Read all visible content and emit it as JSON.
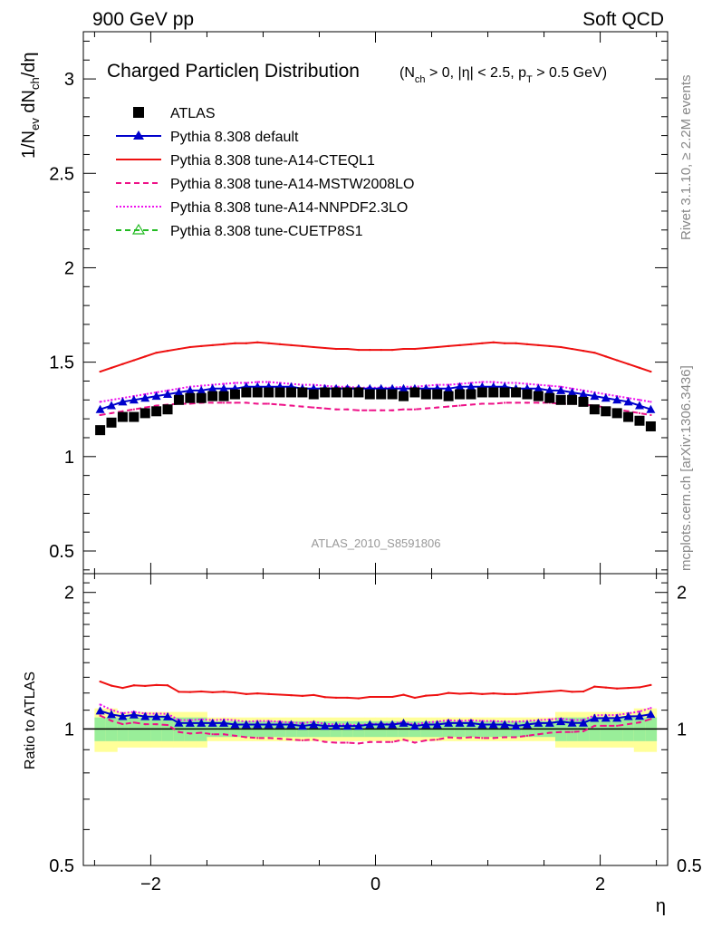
{
  "header": {
    "left": "900 GeV pp",
    "right": "Soft QCD",
    "side_top": "Rivet 3.1.10, ≥ 2.2M events",
    "side_bottom": "mcplots.cern.ch [arXiv:1306.3436]",
    "analysis_id": "ATLAS_2010_S8591806"
  },
  "chart_data": {
    "type": "line",
    "title": "Charged Particleη Distribution",
    "subtitle": "(N_ch > 0, |η| < 2.5, p_T > 0.5 GeV)",
    "xlabel": "η",
    "ylabel": "1/N_ev dN_ch/dη",
    "ratio_ylabel": "Ratio to ATLAS",
    "xlim": [
      -2.6,
      2.6
    ],
    "ylim_main": [
      0.38,
      3.25
    ],
    "ylim_ratio": [
      0.5,
      2.2
    ],
    "x_ticks": [
      "−2",
      "0",
      "2"
    ],
    "y_ticks_main": [
      "0.5",
      "1",
      "1.5",
      "2",
      "2.5",
      "3"
    ],
    "y_ticks_ratio": [
      "0.5",
      "1",
      "2"
    ],
    "x": [
      -2.45,
      -2.35,
      -2.25,
      -2.15,
      -2.05,
      -1.95,
      -1.85,
      -1.75,
      -1.65,
      -1.55,
      -1.45,
      -1.35,
      -1.25,
      -1.15,
      -1.05,
      -0.95,
      -0.85,
      -0.75,
      -0.65,
      -0.55,
      -0.45,
      -0.35,
      -0.25,
      -0.15,
      -0.05,
      0.05,
      0.15,
      0.25,
      0.35,
      0.45,
      0.55,
      0.65,
      0.75,
      0.85,
      0.95,
      1.05,
      1.15,
      1.25,
      1.35,
      1.45,
      1.55,
      1.65,
      1.75,
      1.85,
      1.95,
      2.05,
      2.15,
      2.25,
      2.35,
      2.45
    ],
    "atlas": [
      1.14,
      1.18,
      1.21,
      1.21,
      1.23,
      1.24,
      1.25,
      1.3,
      1.31,
      1.31,
      1.32,
      1.32,
      1.33,
      1.34,
      1.34,
      1.34,
      1.34,
      1.34,
      1.34,
      1.33,
      1.34,
      1.34,
      1.34,
      1.34,
      1.33,
      1.33,
      1.33,
      1.32,
      1.34,
      1.33,
      1.33,
      1.32,
      1.33,
      1.33,
      1.34,
      1.34,
      1.34,
      1.34,
      1.33,
      1.32,
      1.31,
      1.3,
      1.3,
      1.29,
      1.25,
      1.24,
      1.23,
      1.21,
      1.19,
      1.16
    ],
    "band_inner": [
      0.06,
      0.06,
      0.06,
      0.06,
      0.06,
      0.06,
      0.06,
      0.06,
      0.06,
      0.06,
      0.04,
      0.04,
      0.04,
      0.04,
      0.04,
      0.04,
      0.04,
      0.04,
      0.04,
      0.04,
      0.04,
      0.04,
      0.04,
      0.04,
      0.04,
      0.04,
      0.04,
      0.04,
      0.04,
      0.04,
      0.04,
      0.04,
      0.04,
      0.04,
      0.04,
      0.04,
      0.04,
      0.04,
      0.04,
      0.04,
      0.04,
      0.06,
      0.06,
      0.06,
      0.06,
      0.06,
      0.06,
      0.06,
      0.06,
      0.06
    ],
    "band_outer": [
      0.11,
      0.11,
      0.09,
      0.09,
      0.09,
      0.09,
      0.09,
      0.09,
      0.09,
      0.09,
      0.06,
      0.06,
      0.06,
      0.06,
      0.06,
      0.06,
      0.06,
      0.06,
      0.06,
      0.06,
      0.06,
      0.06,
      0.06,
      0.06,
      0.06,
      0.06,
      0.06,
      0.06,
      0.06,
      0.06,
      0.06,
      0.06,
      0.06,
      0.06,
      0.06,
      0.06,
      0.06,
      0.06,
      0.06,
      0.06,
      0.06,
      0.09,
      0.09,
      0.09,
      0.09,
      0.09,
      0.09,
      0.09,
      0.11,
      0.11
    ],
    "series": [
      {
        "name": "ATLAS",
        "color": "#000000",
        "marker": "square",
        "style": "points",
        "key": "atlas"
      },
      {
        "name": "Pythia 8.308 default",
        "color": "#0000cc",
        "marker": "triangle",
        "style": "solid",
        "values": [
          1.25,
          1.27,
          1.29,
          1.3,
          1.31,
          1.32,
          1.33,
          1.34,
          1.35,
          1.35,
          1.36,
          1.36,
          1.36,
          1.37,
          1.37,
          1.37,
          1.37,
          1.37,
          1.36,
          1.36,
          1.36,
          1.36,
          1.36,
          1.36,
          1.36,
          1.36,
          1.36,
          1.36,
          1.36,
          1.36,
          1.36,
          1.36,
          1.37,
          1.37,
          1.37,
          1.37,
          1.37,
          1.36,
          1.36,
          1.36,
          1.35,
          1.35,
          1.34,
          1.33,
          1.32,
          1.31,
          1.3,
          1.29,
          1.27,
          1.25
        ]
      },
      {
        "name": "Pythia 8.308 tune-A14-CTEQL1",
        "color": "#ee1111",
        "marker": "none",
        "style": "solid",
        "values": [
          1.45,
          1.47,
          1.49,
          1.51,
          1.53,
          1.55,
          1.56,
          1.57,
          1.58,
          1.585,
          1.59,
          1.595,
          1.6,
          1.6,
          1.605,
          1.6,
          1.595,
          1.59,
          1.585,
          1.58,
          1.575,
          1.57,
          1.57,
          1.565,
          1.565,
          1.565,
          1.565,
          1.57,
          1.57,
          1.575,
          1.58,
          1.585,
          1.59,
          1.595,
          1.6,
          1.605,
          1.6,
          1.6,
          1.595,
          1.59,
          1.585,
          1.58,
          1.57,
          1.56,
          1.55,
          1.53,
          1.51,
          1.49,
          1.47,
          1.45
        ]
      },
      {
        "name": "Pythia 8.308 tune-A14-MSTW2008LO",
        "color": "#ee1188",
        "marker": "none",
        "style": "dashed",
        "values": [
          1.22,
          1.23,
          1.24,
          1.25,
          1.26,
          1.27,
          1.275,
          1.28,
          1.28,
          1.285,
          1.285,
          1.285,
          1.285,
          1.285,
          1.28,
          1.28,
          1.275,
          1.27,
          1.265,
          1.26,
          1.255,
          1.25,
          1.25,
          1.245,
          1.245,
          1.245,
          1.245,
          1.25,
          1.25,
          1.255,
          1.26,
          1.265,
          1.27,
          1.275,
          1.28,
          1.28,
          1.285,
          1.285,
          1.285,
          1.285,
          1.285,
          1.28,
          1.28,
          1.275,
          1.27,
          1.26,
          1.25,
          1.24,
          1.23,
          1.22
        ]
      },
      {
        "name": "Pythia 8.308 tune-A14-NNPDF2.3LO",
        "color": "#ee11ee",
        "marker": "none",
        "style": "dotted",
        "values": [
          1.29,
          1.3,
          1.31,
          1.32,
          1.33,
          1.34,
          1.35,
          1.36,
          1.37,
          1.375,
          1.38,
          1.385,
          1.39,
          1.39,
          1.395,
          1.395,
          1.39,
          1.385,
          1.38,
          1.38,
          1.375,
          1.37,
          1.37,
          1.365,
          1.365,
          1.365,
          1.365,
          1.37,
          1.37,
          1.375,
          1.38,
          1.38,
          1.385,
          1.39,
          1.395,
          1.395,
          1.39,
          1.39,
          1.385,
          1.38,
          1.375,
          1.37,
          1.36,
          1.35,
          1.34,
          1.33,
          1.32,
          1.31,
          1.3,
          1.29
        ]
      },
      {
        "name": "Pythia 8.308 tune-CUETP8S1",
        "color": "#22bb22",
        "marker": "open-triangle",
        "style": "dashed",
        "values": [
          1.18,
          1.2,
          1.22,
          1.24,
          1.26,
          1.28,
          1.3,
          1.31,
          1.32,
          1.33,
          1.34,
          1.345,
          1.35,
          1.35,
          1.355,
          1.355,
          1.355,
          1.35,
          1.35,
          1.345,
          1.345,
          1.345,
          1.345,
          1.345,
          1.345,
          1.345,
          1.345,
          1.345,
          1.345,
          1.345,
          1.345,
          1.35,
          1.35,
          1.355,
          1.355,
          1.355,
          1.35,
          1.35,
          1.345,
          1.34,
          1.33,
          1.32,
          1.31,
          1.3,
          1.28,
          1.26,
          1.24,
          1.22,
          1.2,
          1.18
        ]
      }
    ],
    "legend_position": "top-left",
    "grid": false
  }
}
